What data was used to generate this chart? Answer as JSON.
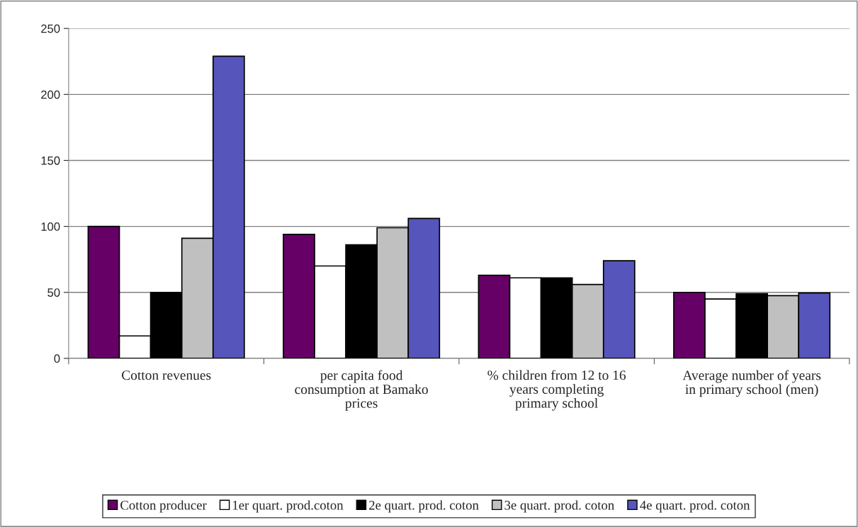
{
  "chart_data": {
    "type": "bar",
    "categories": [
      "Cotton revenues",
      "per capita food\nconsumption at Bamako\nprices",
      "% children from 12 to 16\nyears completing\nprimary school",
      "Average number of years\nin primary school (men)"
    ],
    "series": [
      {
        "name": "Cotton producer",
        "color": "#660066",
        "values": [
          100,
          94,
          63,
          50
        ]
      },
      {
        "name": "1er quart. prod.coton",
        "color": "#ffffff",
        "values": [
          17,
          70,
          61,
          45
        ]
      },
      {
        "name": "2e quart. prod. coton",
        "color": "#000000",
        "values": [
          50,
          86,
          61,
          49
        ]
      },
      {
        "name": "3e quart. prod. coton",
        "color": "#c0c0c0",
        "values": [
          91,
          99,
          56,
          47.5
        ]
      },
      {
        "name": "4e quart. prod. coton",
        "color": "#5555bb",
        "values": [
          229,
          106,
          74,
          49.5
        ]
      }
    ],
    "ylim": [
      0,
      250
    ],
    "yticks": [
      0,
      50,
      100,
      150,
      200,
      250
    ],
    "grid": "y",
    "legend": "bottom"
  }
}
